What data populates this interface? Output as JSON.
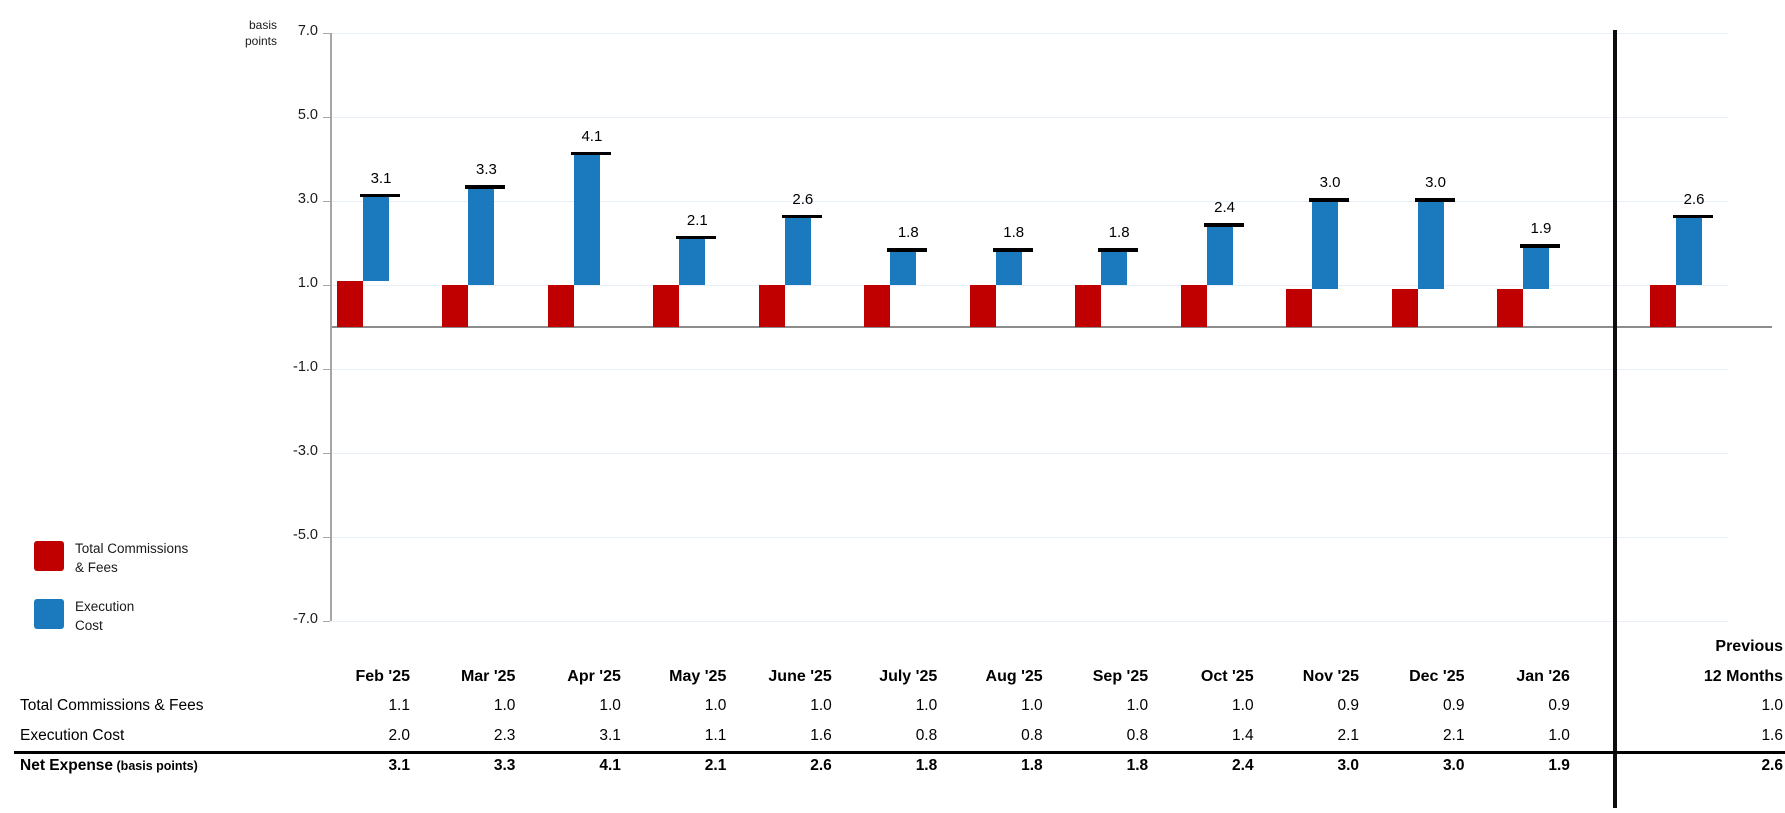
{
  "axis": {
    "unit_label_line1": "basis",
    "unit_label_line2": "points",
    "tick_labels": [
      "7.0",
      "5.0",
      "3.0",
      "1.0",
      "-1.0",
      "-3.0",
      "-5.0",
      "-7.0"
    ]
  },
  "legend": {
    "items": [
      {
        "line1": "Total Commissions",
        "line2": "& Fees",
        "color": "#C00000"
      },
      {
        "line1": "Execution",
        "line2": "Cost",
        "color": "#1B79BE"
      }
    ]
  },
  "chart_data": {
    "type": "bar",
    "subtype": "stacked-waterfall",
    "title": "",
    "ylabel": "basis points",
    "ylim": [
      -7.0,
      7.0
    ],
    "yticks": [
      7.0,
      5.0,
      3.0,
      1.0,
      -1.0,
      -3.0,
      -5.0,
      -7.0
    ],
    "grid": true,
    "legend_position": "bottom-left",
    "categories": [
      "Feb '25",
      "Mar '25",
      "Apr '25",
      "May '25",
      "June '25",
      "July '25",
      "Aug '25",
      "Sep '25",
      "Oct '25",
      "Nov '25",
      "Dec '25",
      "Jan '26",
      "Previous 12 Months"
    ],
    "series": [
      {
        "name": "Total Commissions & Fees",
        "color": "#C00000",
        "values": [
          1.1,
          1.0,
          1.0,
          1.0,
          1.0,
          1.0,
          1.0,
          1.0,
          1.0,
          0.9,
          0.9,
          0.9,
          1.0
        ]
      },
      {
        "name": "Execution Cost",
        "color": "#1B79BE",
        "values": [
          2.0,
          2.3,
          3.1,
          1.1,
          1.6,
          0.8,
          0.8,
          0.8,
          1.4,
          2.1,
          2.1,
          1.0,
          1.6
        ]
      }
    ],
    "totals": [
      3.1,
      3.3,
      4.1,
      2.1,
      2.6,
      1.8,
      1.8,
      1.8,
      2.4,
      3.0,
      3.0,
      1.9,
      2.6
    ],
    "total_marker_color": "#000000"
  },
  "table": {
    "month_headers": [
      "Feb '25",
      "Mar '25",
      "Apr '25",
      "May '25",
      "June '25",
      "July '25",
      "Aug '25",
      "Sep '25",
      "Oct '25",
      "Nov '25",
      "Dec '25",
      "Jan '26"
    ],
    "prev_header_line1": "Previous",
    "prev_header_line2": "12 Months",
    "rows": [
      {
        "label": "Total Commissions & Fees",
        "suffix": "",
        "bold": false,
        "values": [
          "1.1",
          "1.0",
          "1.0",
          "1.0",
          "1.0",
          "1.0",
          "1.0",
          "1.0",
          "1.0",
          "0.9",
          "0.9",
          "0.9"
        ],
        "prev": "1.0"
      },
      {
        "label": "Execution Cost",
        "suffix": "",
        "bold": false,
        "values": [
          "2.0",
          "2.3",
          "3.1",
          "1.1",
          "1.6",
          "0.8",
          "0.8",
          "0.8",
          "1.4",
          "2.1",
          "2.1",
          "1.0"
        ],
        "prev": "1.6"
      },
      {
        "label": "Net Expense",
        "suffix": " (basis points)",
        "bold": true,
        "values": [
          "3.1",
          "3.3",
          "4.1",
          "2.1",
          "2.6",
          "1.8",
          "1.8",
          "1.8",
          "2.4",
          "3.0",
          "3.0",
          "1.9"
        ],
        "prev": "2.6"
      }
    ]
  }
}
